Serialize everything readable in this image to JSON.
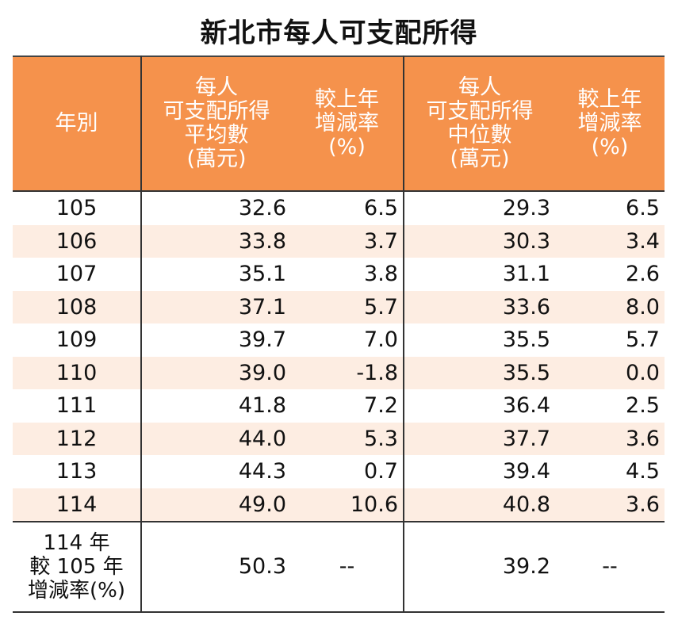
{
  "title": "新北市每人可支配所得",
  "headers": {
    "year": "年別",
    "mean_lines": [
      "每人",
      "可支配所得",
      "平均數",
      "(萬元)"
    ],
    "mean_change_lines": [
      "較上年",
      "增減率",
      "(%)"
    ],
    "median_lines": [
      "每人",
      "可支配所得",
      "中位數",
      "(萬元)"
    ],
    "median_change_lines": [
      "較上年",
      "增減率",
      "(%)"
    ]
  },
  "rows": [
    {
      "year": "105",
      "mean": "32.6",
      "mean_change": "6.5",
      "median": "29.3",
      "median_change": "6.5"
    },
    {
      "year": "106",
      "mean": "33.8",
      "mean_change": "3.7",
      "median": "30.3",
      "median_change": "3.4"
    },
    {
      "year": "107",
      "mean": "35.1",
      "mean_change": "3.8",
      "median": "31.1",
      "median_change": "2.6"
    },
    {
      "year": "108",
      "mean": "37.1",
      "mean_change": "5.7",
      "median": "33.6",
      "median_change": "8.0"
    },
    {
      "year": "109",
      "mean": "39.7",
      "mean_change": "7.0",
      "median": "35.5",
      "median_change": "5.7"
    },
    {
      "year": "110",
      "mean": "39.0",
      "mean_change": "-1.8",
      "median": "35.5",
      "median_change": "0.0"
    },
    {
      "year": "111",
      "mean": "41.8",
      "mean_change": "7.2",
      "median": "36.4",
      "median_change": "2.5"
    },
    {
      "year": "112",
      "mean": "44.0",
      "mean_change": "5.3",
      "median": "37.7",
      "median_change": "3.6"
    },
    {
      "year": "113",
      "mean": "44.3",
      "mean_change": "0.7",
      "median": "39.4",
      "median_change": "4.5"
    },
    {
      "year": "114",
      "mean": "49.0",
      "mean_change": "10.6",
      "median": "40.8",
      "median_change": "3.6"
    }
  ],
  "summary": {
    "label_lines": [
      "114 年",
      "較 105 年",
      "增減率(%)"
    ],
    "mean": "50.3",
    "mean_change": "--",
    "median": "39.2",
    "median_change": "--"
  },
  "colors": {
    "header_bg": "#F5924C",
    "stripe_bg": "#FDEDE2"
  }
}
